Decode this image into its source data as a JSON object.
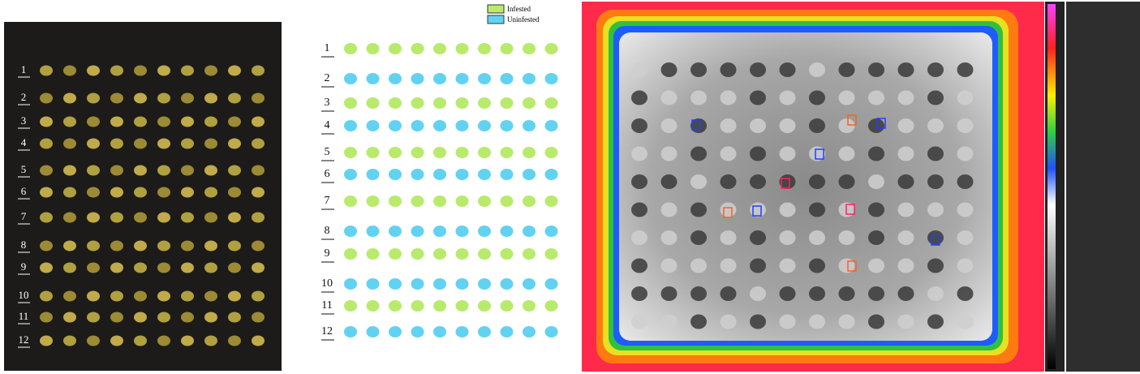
{
  "photo": {
    "row_labels": [
      "1",
      "2",
      "3",
      "4",
      "5",
      "6",
      "7",
      "8",
      "9",
      "10",
      "11",
      "12"
    ]
  },
  "segmentation": {
    "row_labels": [
      "1",
      "2",
      "3",
      "4",
      "5",
      "6",
      "7",
      "8",
      "9",
      "10",
      "11",
      "12"
    ],
    "legend": [
      {
        "label": "Infested",
        "color": "#b8ea6c"
      },
      {
        "label": "Uninfested",
        "color": "#62d2f2"
      }
    ]
  }
}
